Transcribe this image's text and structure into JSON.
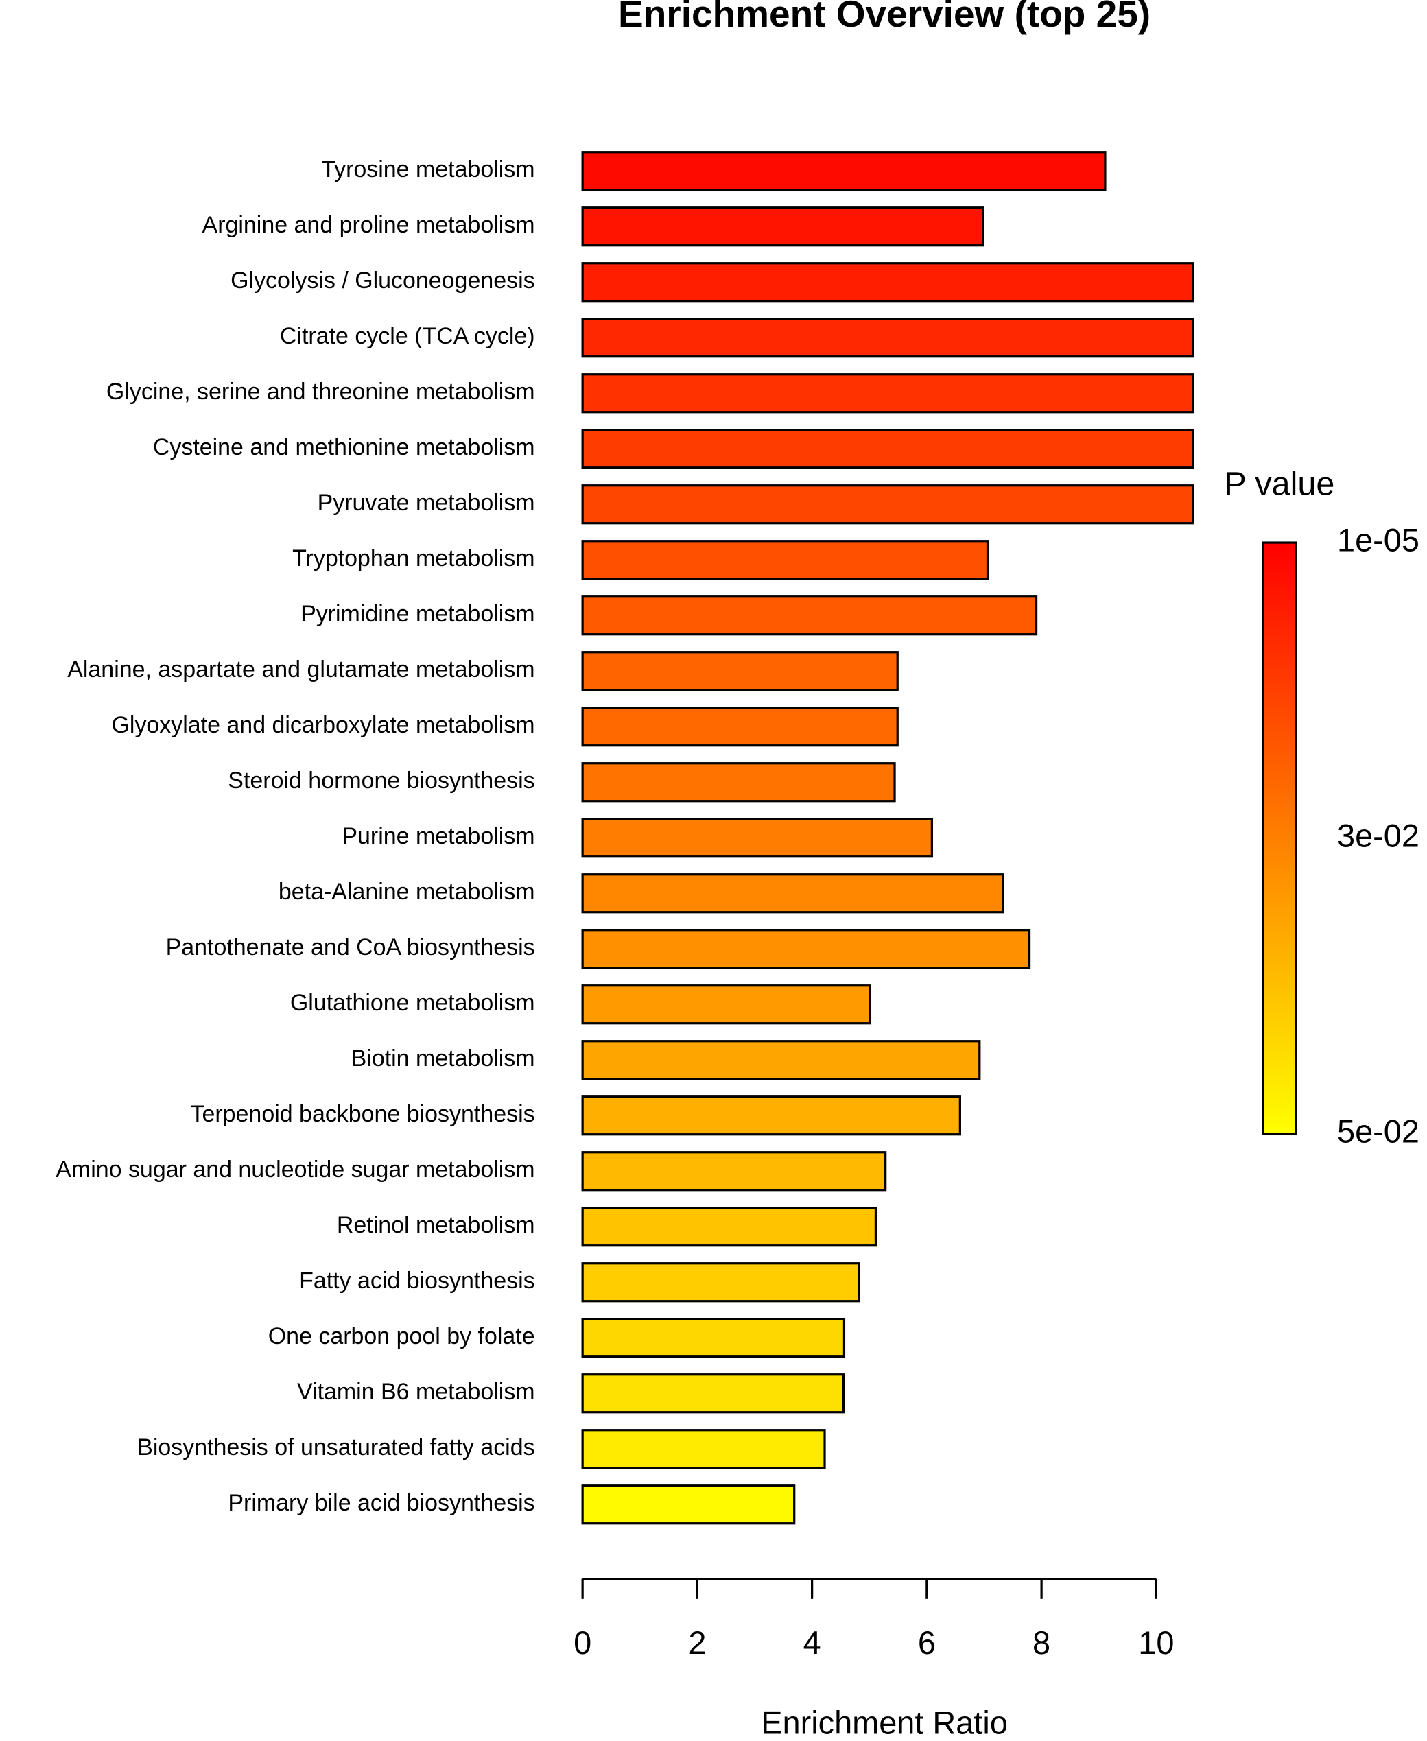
{
  "chart_data": {
    "type": "barh",
    "title": "Enrichment Overview (top 25)",
    "xlabel": "Enrichment Ratio",
    "categories": [
      "Tyrosine metabolism",
      "Arginine and proline metabolism",
      "Glycolysis / Gluconeogenesis",
      "Citrate cycle (TCA cycle)",
      "Glycine, serine and threonine metabolism",
      "Cysteine and methionine metabolism",
      "Pyruvate metabolism",
      "Tryptophan metabolism",
      "Pyrimidine metabolism",
      "Alanine, aspartate and glutamate metabolism",
      "Glyoxylate and dicarboxylate metabolism",
      "Steroid hormone biosynthesis",
      "Purine metabolism",
      "beta-Alanine metabolism",
      "Pantothenate and CoA biosynthesis",
      "Glutathione metabolism",
      "Biotin metabolism",
      "Terpenoid backbone biosynthesis",
      "Amino sugar and nucleotide sugar metabolism",
      "Retinol metabolism",
      "Fatty acid biosynthesis",
      "One carbon pool by folate",
      "Vitamin B6 metabolism",
      "Biosynthesis of unsaturated fatty acids",
      "Primary bile acid biosynthesis"
    ],
    "values": [
      9.11,
      6.98,
      10.64,
      10.64,
      10.64,
      10.64,
      10.64,
      7.06,
      7.91,
      5.49,
      5.49,
      5.44,
      6.09,
      7.33,
      7.79,
      5.01,
      6.92,
      6.58,
      5.28,
      5.11,
      4.82,
      4.56,
      4.55,
      4.22,
      3.69
    ],
    "colors": [
      "#ff0a00",
      "#ff1400",
      "#ff1e00",
      "#ff2800",
      "#ff3200",
      "#ff3c00",
      "#ff4600",
      "#ff5000",
      "#ff5a00",
      "#ff6400",
      "#ff6900",
      "#ff7300",
      "#ff7d00",
      "#ff8700",
      "#ff9100",
      "#ff9b00",
      "#ffa500",
      "#ffaf00",
      "#ffb900",
      "#ffc300",
      "#ffcd00",
      "#ffd700",
      "#ffe100",
      "#ffeb00",
      "#fffa00"
    ],
    "xlim": [
      0,
      10
    ],
    "xticks": [
      0,
      2,
      4,
      6,
      8,
      10
    ],
    "colorbar": {
      "title": "P value",
      "colors": [
        "#ff0000",
        "#ffff00"
      ],
      "ticks": [
        "1e-05",
        "3e-02",
        "5e-02"
      ]
    }
  }
}
